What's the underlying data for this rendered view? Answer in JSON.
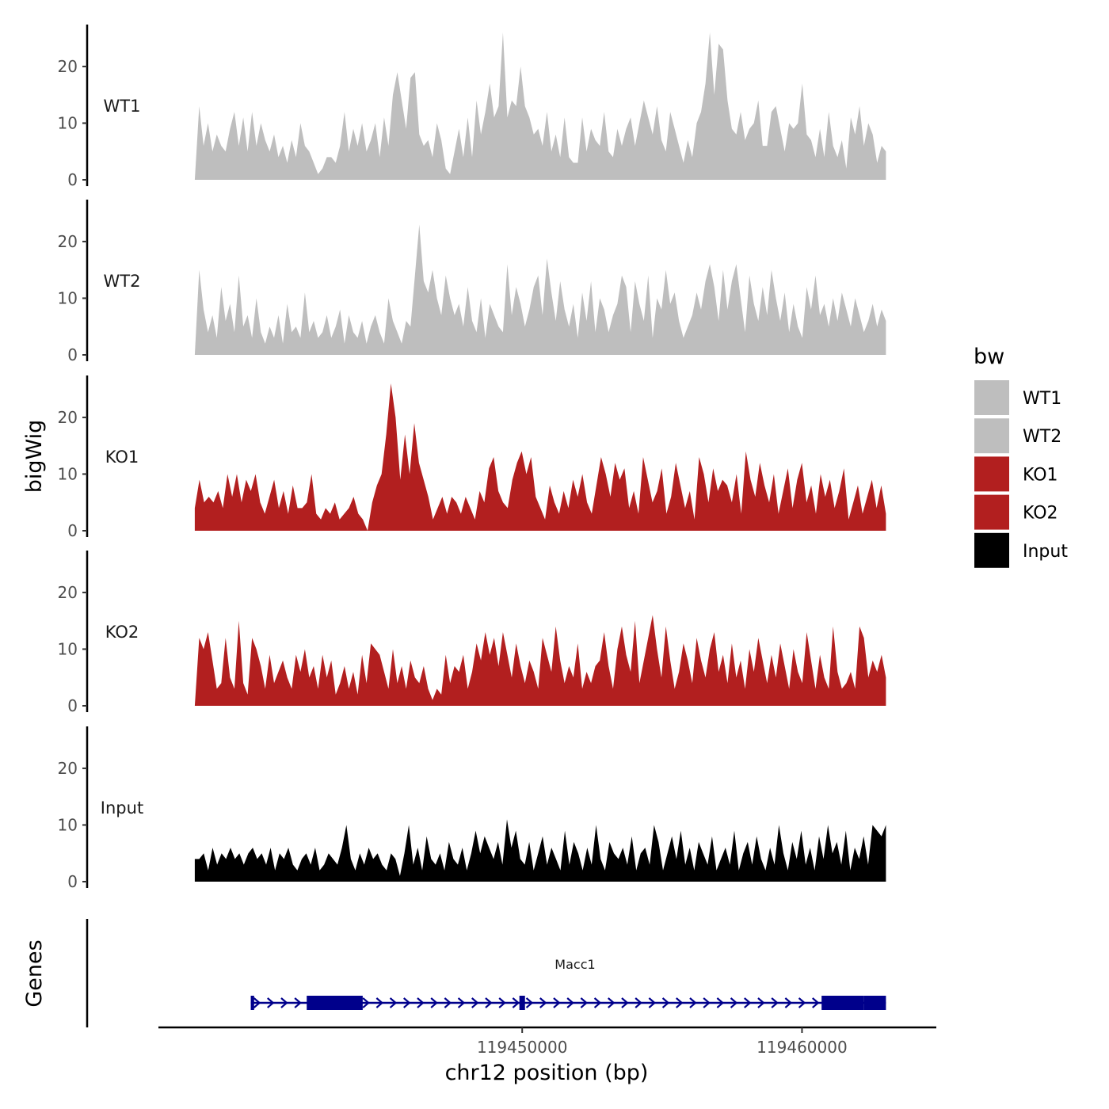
{
  "chart_data": {
    "type": "area",
    "title": "",
    "ylabel": "bigWig",
    "xlabel": "chr12 position (bp)",
    "ylim": [
      0,
      26
    ],
    "yticks": [
      0,
      10,
      20
    ],
    "xlim": [
      119437000,
      119464800
    ],
    "xticks": [
      119450000,
      119460000
    ],
    "xtick_labels": [
      "119450000",
      "119460000"
    ],
    "genes_label": "Genes",
    "region_start": 119438300,
    "region_end": 119463000,
    "legend": {
      "title": "bw",
      "entries": [
        {
          "name": "WT1",
          "color": "#bebebe"
        },
        {
          "name": "WT2",
          "color": "#bebebe"
        },
        {
          "name": "KO1",
          "color": "#b21f1f"
        },
        {
          "name": "KO2",
          "color": "#b21f1f"
        },
        {
          "name": "Input",
          "color": "#000000"
        }
      ]
    },
    "series": [
      {
        "name": "WT1",
        "color": "#bebebe",
        "values": [
          0,
          13,
          6,
          10,
          5,
          8,
          6,
          5,
          9,
          12,
          6,
          11,
          5,
          12,
          6,
          10,
          7,
          5,
          8,
          4,
          6,
          3,
          7,
          4,
          10,
          6,
          5,
          3,
          1,
          2,
          4,
          4,
          3,
          6,
          12,
          5,
          9,
          6,
          10,
          5,
          7,
          10,
          4,
          11,
          6,
          15,
          19,
          14,
          9,
          18,
          19,
          8,
          6,
          7,
          4,
          10,
          7,
          2,
          1,
          5,
          9,
          4,
          11,
          4,
          14,
          8,
          12,
          17,
          11,
          13,
          26,
          11,
          14,
          13,
          20,
          13,
          11,
          8,
          9,
          6,
          12,
          5,
          8,
          4,
          11,
          4,
          3,
          3,
          11,
          5,
          9,
          7,
          6,
          12,
          5,
          4,
          9,
          6,
          9,
          11,
          6,
          10,
          14,
          11,
          8,
          13,
          7,
          5,
          12,
          9,
          6,
          3,
          7,
          4,
          10,
          12,
          17,
          26,
          15,
          24,
          23,
          14,
          9,
          8,
          12,
          7,
          9,
          10,
          14,
          6,
          6,
          12,
          13,
          9,
          5,
          10,
          9,
          10,
          17,
          8,
          7,
          4,
          9,
          4,
          12,
          6,
          4,
          7,
          2,
          11,
          8,
          13,
          6,
          10,
          8,
          3,
          6,
          5
        ]
      },
      {
        "name": "WT2",
        "color": "#bebebe",
        "values": [
          0,
          15,
          8,
          4,
          7,
          3,
          12,
          6,
          9,
          4,
          14,
          5,
          7,
          3,
          10,
          4,
          2,
          5,
          3,
          7,
          2,
          9,
          4,
          5,
          3,
          11,
          4,
          6,
          3,
          4,
          7,
          3,
          5,
          8,
          2,
          7,
          4,
          3,
          6,
          2,
          5,
          7,
          4,
          2,
          10,
          6,
          4,
          2,
          6,
          5,
          14,
          23,
          13,
          11,
          15,
          10,
          7,
          14,
          10,
          7,
          9,
          5,
          12,
          6,
          4,
          10,
          3,
          9,
          7,
          5,
          4,
          16,
          7,
          12,
          9,
          5,
          8,
          12,
          14,
          7,
          17,
          11,
          6,
          13,
          8,
          5,
          9,
          3,
          11,
          6,
          13,
          4,
          10,
          8,
          4,
          7,
          9,
          14,
          12,
          4,
          13,
          9,
          6,
          14,
          3,
          10,
          8,
          15,
          9,
          11,
          6,
          3,
          5,
          7,
          11,
          8,
          13,
          16,
          12,
          6,
          15,
          8,
          13,
          16,
          10,
          4,
          14,
          9,
          6,
          12,
          7,
          15,
          10,
          6,
          11,
          4,
          9,
          5,
          3,
          12,
          8,
          14,
          7,
          9,
          5,
          10,
          6,
          11,
          8,
          5,
          10,
          7,
          4,
          6,
          9,
          5,
          8,
          6
        ]
      },
      {
        "name": "KO1",
        "color": "#b21f1f",
        "values": [
          4,
          9,
          5,
          6,
          5,
          7,
          4,
          10,
          6,
          10,
          5,
          9,
          7,
          10,
          5,
          3,
          6,
          9,
          4,
          7,
          3,
          8,
          4,
          4,
          5,
          10,
          3,
          2,
          4,
          3,
          5,
          2,
          3,
          4,
          6,
          3,
          2,
          0,
          5,
          8,
          10,
          17,
          26,
          20,
          9,
          17,
          10,
          19,
          12,
          9,
          6,
          2,
          4,
          6,
          3,
          6,
          5,
          3,
          6,
          4,
          2,
          7,
          5,
          11,
          13,
          7,
          5,
          4,
          9,
          12,
          14,
          10,
          13,
          6,
          4,
          2,
          8,
          5,
          3,
          7,
          4,
          9,
          6,
          10,
          5,
          3,
          8,
          13,
          10,
          6,
          12,
          9,
          11,
          4,
          7,
          3,
          13,
          9,
          5,
          7,
          11,
          3,
          6,
          12,
          8,
          4,
          7,
          2,
          13,
          10,
          5,
          11,
          7,
          9,
          8,
          5,
          10,
          3,
          14,
          9,
          6,
          12,
          8,
          5,
          10,
          3,
          7,
          11,
          4,
          9,
          12,
          5,
          8,
          3,
          10,
          6,
          9,
          4,
          7,
          11,
          2,
          5,
          8,
          3,
          6,
          9,
          4,
          8,
          3
        ]
      },
      {
        "name": "KO2",
        "color": "#b21f1f",
        "values": [
          0,
          12,
          10,
          13,
          8,
          3,
          4,
          12,
          5,
          3,
          15,
          4,
          2,
          12,
          10,
          7,
          3,
          9,
          4,
          6,
          8,
          5,
          3,
          9,
          6,
          10,
          5,
          7,
          3,
          9,
          5,
          8,
          2,
          4,
          7,
          3,
          6,
          2,
          9,
          4,
          11,
          10,
          9,
          6,
          3,
          10,
          4,
          7,
          3,
          8,
          5,
          4,
          7,
          3,
          1,
          3,
          2,
          9,
          4,
          7,
          6,
          9,
          3,
          6,
          11,
          8,
          13,
          9,
          12,
          7,
          13,
          9,
          5,
          11,
          7,
          4,
          8,
          6,
          3,
          12,
          9,
          6,
          14,
          8,
          4,
          7,
          5,
          11,
          3,
          6,
          4,
          7,
          8,
          13,
          7,
          3,
          10,
          14,
          9,
          6,
          15,
          4,
          8,
          12,
          16,
          10,
          5,
          14,
          8,
          3,
          6,
          11,
          8,
          4,
          12,
          8,
          5,
          10,
          13,
          6,
          9,
          4,
          11,
          5,
          8,
          3,
          10,
          6,
          12,
          8,
          4,
          9,
          5,
          11,
          7,
          3,
          10,
          6,
          4,
          13,
          8,
          3,
          9,
          5,
          3,
          14,
          6,
          3,
          4,
          6,
          3,
          14,
          12,
          5,
          8,
          6,
          9,
          5
        ]
      },
      {
        "name": "Input",
        "color": "#000000",
        "values": [
          4,
          4,
          5,
          2,
          6,
          3,
          5,
          4,
          6,
          4,
          5,
          3,
          5,
          6,
          4,
          5,
          3,
          6,
          2,
          5,
          4,
          6,
          3,
          2,
          4,
          5,
          3,
          6,
          2,
          3,
          5,
          4,
          3,
          6,
          10,
          4,
          2,
          5,
          3,
          6,
          4,
          5,
          3,
          2,
          5,
          4,
          1,
          5,
          10,
          3,
          6,
          2,
          8,
          4,
          3,
          5,
          2,
          7,
          4,
          3,
          6,
          2,
          5,
          9,
          5,
          8,
          6,
          4,
          7,
          3,
          11,
          6,
          9,
          4,
          3,
          7,
          2,
          5,
          8,
          3,
          6,
          4,
          2,
          9,
          3,
          7,
          5,
          2,
          6,
          3,
          10,
          4,
          2,
          7,
          5,
          4,
          6,
          3,
          8,
          2,
          5,
          6,
          3,
          10,
          7,
          2,
          5,
          8,
          4,
          9,
          3,
          6,
          2,
          7,
          5,
          3,
          8,
          2,
          4,
          6,
          3,
          9,
          2,
          5,
          7,
          3,
          8,
          4,
          2,
          6,
          3,
          10,
          5,
          2,
          7,
          4,
          9,
          3,
          6,
          2,
          8,
          4,
          10,
          5,
          7,
          3,
          9,
          2,
          6,
          4,
          8,
          3,
          10,
          9,
          8,
          10
        ]
      }
    ],
    "gene": {
      "name": "Macc1",
      "start": 119440300,
      "end": 119463000,
      "strand": "+",
      "exons": [
        [
          119440300,
          119440420
        ],
        [
          119442300,
          119444300
        ],
        [
          119449900,
          119450100
        ],
        [
          119460700,
          119462200
        ],
        [
          119462200,
          119463000
        ]
      ]
    }
  }
}
